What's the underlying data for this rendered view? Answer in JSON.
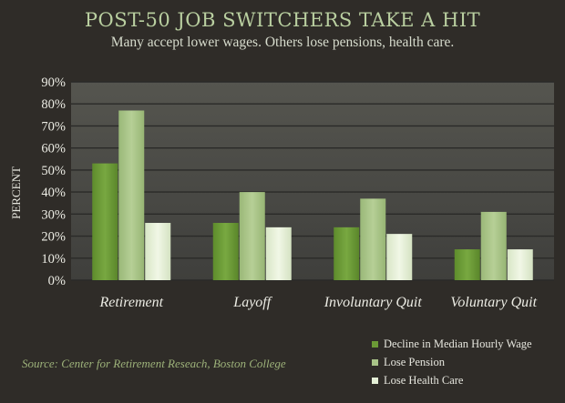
{
  "header": {
    "title": "POST-50 JOB SWITCHERS TAKE A HIT",
    "subtitle": "Many accept lower wages. Others lose pensions, health care."
  },
  "source": "Source: Center for Retirement Reseach, Boston College",
  "colors": {
    "background": "#2f2c28",
    "plot_area": "#4a4a47",
    "series": [
      "#6b9a36",
      "#a9c488",
      "#e4efd6"
    ]
  },
  "chart_data": {
    "type": "bar",
    "title": "POST-50 JOB SWITCHERS TAKE A HIT",
    "subtitle": "Many accept lower wages. Others lose pensions, health care.",
    "xlabel": "",
    "ylabel": "PERCENT",
    "ylim": [
      0,
      90
    ],
    "yticks": [
      0,
      10,
      20,
      30,
      40,
      50,
      60,
      70,
      80,
      90
    ],
    "ytick_labels": [
      "0%",
      "10%",
      "20%",
      "30%",
      "40%",
      "50%",
      "60%",
      "70%",
      "80%",
      "90%"
    ],
    "grid": true,
    "legend_position": "bottom-right",
    "categories": [
      "Retirement",
      "Layoff",
      "Involuntary Quit",
      "Voluntary Quit"
    ],
    "series": [
      {
        "name": "Decline in Median Hourly Wage",
        "values": [
          53,
          26,
          24,
          14
        ]
      },
      {
        "name": "Lose Pension",
        "values": [
          77,
          40,
          37,
          31
        ]
      },
      {
        "name": "Lose Health Care",
        "values": [
          26,
          24,
          21,
          14
        ]
      }
    ]
  }
}
